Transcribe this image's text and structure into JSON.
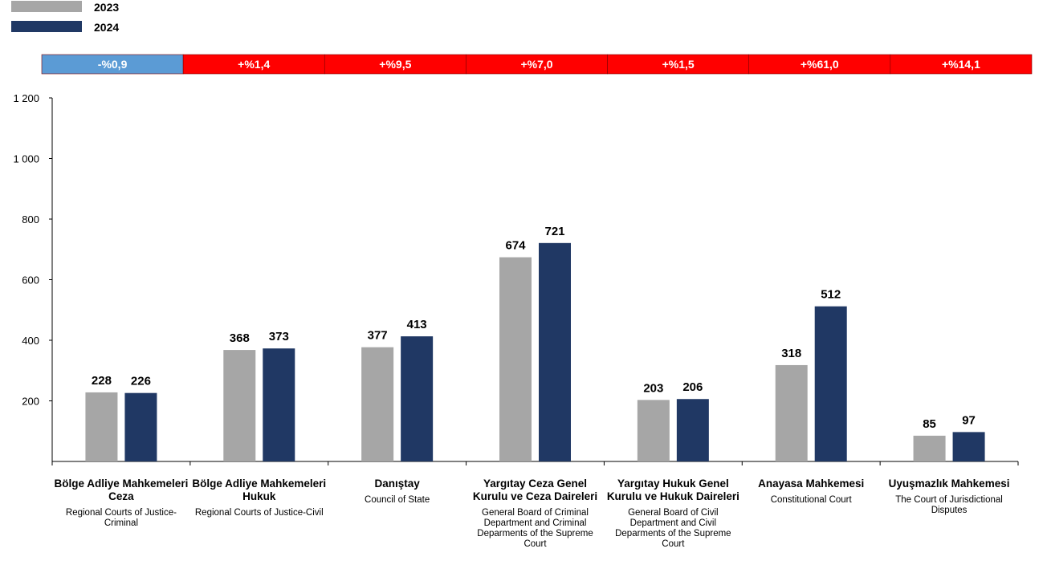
{
  "chart_data": {
    "type": "bar",
    "ylim": [
      0,
      1200
    ],
    "yticks": [
      200,
      400,
      600,
      800,
      1000,
      1200
    ],
    "ytick_labels": [
      "200",
      "400",
      "600",
      "800",
      "1 000",
      "1 200"
    ],
    "grid": false,
    "legend_position": "top-left",
    "categories": [
      {
        "tr": "Bölge Adliye Mahkemeleri Ceza",
        "en": "Regional Courts of Justice-Criminal"
      },
      {
        "tr": "Bölge Adliye Mahkemeleri Hukuk",
        "en": "Regional Courts of Justice-Civil"
      },
      {
        "tr": "Danıştay",
        "en": "Council of State"
      },
      {
        "tr": "Yargıtay Ceza Genel Kurulu ve Ceza Daireleri",
        "en": "General Board of Criminal Department and Criminal Deparments of the Supreme Court"
      },
      {
        "tr": "Yargıtay Hukuk Genel Kurulu ve Hukuk Daireleri",
        "en": "General Board of Civil Department and Civil Deparments of the Supreme Court"
      },
      {
        "tr": "Anayasa Mahkemesi",
        "en": "Constitutional Court"
      },
      {
        "tr": "Uyuşmazlık Mahkemesi",
        "en": "The Court of Jurisdictional Disputes"
      }
    ],
    "series": [
      {
        "name": "2023",
        "color": "#a6a6a6",
        "values": [
          228,
          368,
          377,
          674,
          203,
          318,
          85
        ]
      },
      {
        "name": "2024",
        "color": "#203864",
        "values": [
          226,
          373,
          413,
          721,
          206,
          512,
          97
        ]
      }
    ],
    "change_labels": [
      "-%0,9",
      "+%1,4",
      "+%9,5",
      "+%7,0",
      "+%1,5",
      "+%61,0",
      "+%14,1"
    ],
    "change_colors": [
      "#5b9bd5",
      "#ff0000",
      "#ff0000",
      "#ff0000",
      "#ff0000",
      "#ff0000",
      "#ff0000"
    ]
  }
}
